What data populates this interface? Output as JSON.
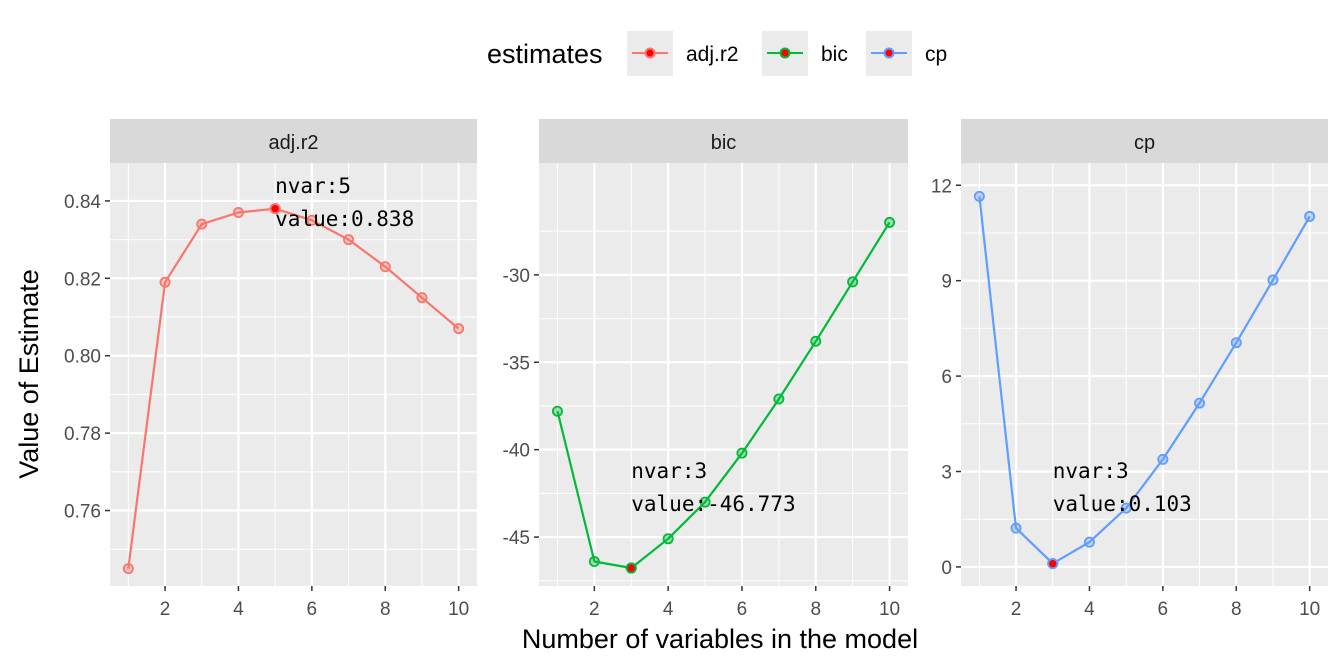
{
  "legend": {
    "title": "estimates",
    "items": [
      {
        "label": "adj.r2",
        "color": "#F8766D"
      },
      {
        "label": "bic",
        "color": "#00BA38"
      },
      {
        "label": "cp",
        "color": "#619CFF"
      }
    ]
  },
  "chart_data": [
    {
      "type": "line",
      "panel": "adj.r2",
      "color": "#F8766D",
      "x": [
        1,
        2,
        3,
        4,
        5,
        6,
        7,
        8,
        9,
        10
      ],
      "y": [
        0.745,
        0.819,
        0.834,
        0.837,
        0.838,
        0.835,
        0.83,
        0.823,
        0.815,
        0.807
      ],
      "xlim": [
        0.5,
        10.5
      ],
      "ylim": [
        0.7405,
        0.8498
      ],
      "xticks": [
        2,
        4,
        6,
        8,
        10
      ],
      "xtick_labels": [
        "2",
        "4",
        "6",
        "8",
        "10"
      ],
      "yticks": [
        0.76,
        0.78,
        0.8,
        0.82,
        0.84
      ],
      "ytick_labels": [
        "0.76",
        "0.78",
        "0.80",
        "0.82",
        "0.84"
      ],
      "highlight": {
        "x": 5,
        "y": 0.838,
        "color": "#FF0000"
      },
      "annotation": {
        "line1": "nvar:5",
        "line2": "value:0.838"
      }
    },
    {
      "type": "line",
      "panel": "bic",
      "color": "#00BA38",
      "x": [
        1,
        2,
        3,
        4,
        5,
        6,
        7,
        8,
        9,
        10
      ],
      "y": [
        -37.8,
        -46.4,
        -46.773,
        -45.1,
        -43.0,
        -40.2,
        -37.1,
        -33.8,
        -30.4,
        -27.0
      ],
      "xlim": [
        0.5,
        10.5
      ],
      "ylim": [
        -47.8,
        -23.6
      ],
      "xticks": [
        2,
        4,
        6,
        8,
        10
      ],
      "xtick_labels": [
        "2",
        "4",
        "6",
        "8",
        "10"
      ],
      "yticks": [
        -45,
        -40,
        -35,
        -30
      ],
      "ytick_labels": [
        "-45",
        "-40",
        "-35",
        "-30"
      ],
      "highlight": {
        "x": 3,
        "y": -46.773,
        "color": "#FF0000"
      },
      "annotation": {
        "line1": "nvar:3",
        "line2": "value:-46.773"
      }
    },
    {
      "type": "line",
      "panel": "cp",
      "color": "#619CFF",
      "x": [
        1,
        2,
        3,
        4,
        5,
        6,
        7,
        8,
        9,
        10
      ],
      "y": [
        11.65,
        1.22,
        0.103,
        0.78,
        1.85,
        3.38,
        5.15,
        7.05,
        9.02,
        11.02
      ],
      "xlim": [
        0.5,
        10.5
      ],
      "ylim": [
        -0.6,
        12.7
      ],
      "xticks": [
        2,
        4,
        6,
        8,
        10
      ],
      "xtick_labels": [
        "2",
        "4",
        "6",
        "8",
        "10"
      ],
      "yticks": [
        0,
        3,
        6,
        9,
        12
      ],
      "ytick_labels": [
        "0",
        "3",
        "6",
        "9",
        "12"
      ],
      "highlight": {
        "x": 3,
        "y": 0.103,
        "color": "#FF0000"
      },
      "annotation": {
        "line1": "nvar:3",
        "line2": "value:0.103"
      }
    }
  ],
  "xlabel": "Number of variables in the model",
  "ylabel": "Value of Estimate"
}
